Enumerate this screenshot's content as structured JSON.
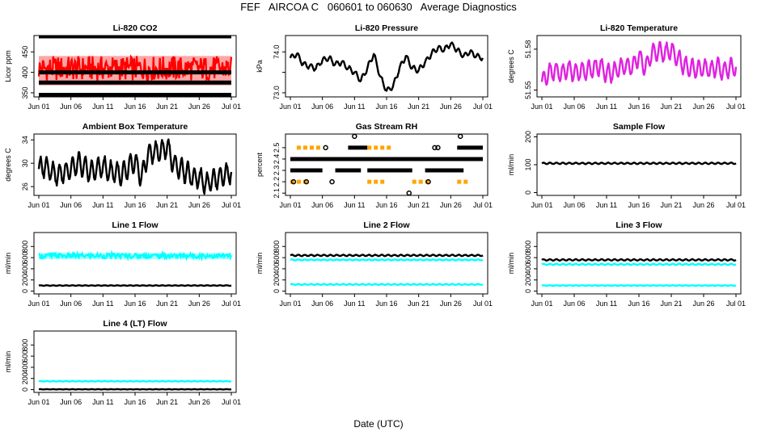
{
  "page": {
    "title": "FEF   AIRCOA C   060601 to 060630   Average Diagnostics",
    "x_axis_title": "Date (UTC)"
  },
  "colors": {
    "black": "#000000",
    "red": "#ff0000",
    "magenta": "#e020e0",
    "green": "#2e8b2e",
    "orange": "#ffa500",
    "cyan": "#00ffff"
  },
  "chart_data": [
    {
      "type": "scatter",
      "title": "Li-820 CO2",
      "ylabel": "Licor ppm",
      "ylim": [
        340,
        490
      ],
      "yticks": [
        350,
        400,
        450
      ],
      "xlim": [
        1,
        31
      ],
      "xticks": [
        "Jun 01",
        "Jun 06",
        "Jun 11",
        "Jun 16",
        "Jun 21",
        "Jun 26",
        "Jul 01"
      ],
      "grid": false,
      "series": [
        {
          "color": "black",
          "kind": "line",
          "values": [
            488
          ]
        },
        {
          "color": "red",
          "kind": "band",
          "low": [
            368
          ],
          "high": [
            440
          ]
        },
        {
          "color": "black",
          "kind": "line",
          "values": [
            400
          ]
        },
        {
          "color": "black",
          "kind": "line",
          "values": [
            375
          ]
        },
        {
          "color": "black",
          "kind": "line",
          "values": [
            345
          ]
        }
      ]
    },
    {
      "type": "line",
      "title": "Li-820 Pressure",
      "ylabel": "kPa",
      "ylim": [
        72.9,
        74.4
      ],
      "yticks": [
        73.0,
        73.5,
        74.0
      ],
      "yticklabels": [
        "73.0",
        "",
        "74.0"
      ],
      "xlim": [
        1,
        31
      ],
      "xticks": [
        "Jun 01",
        "Jun 06",
        "Jun 11",
        "Jun 16",
        "Jun 21",
        "Jun 26",
        "Jul 01"
      ],
      "grid": false,
      "series": [
        {
          "color": "black",
          "kind": "line",
          "x": [
            1,
            2,
            3,
            4,
            5,
            6,
            7,
            8,
            9,
            10,
            11,
            12,
            13,
            14,
            15,
            16,
            17,
            18,
            19,
            20,
            21,
            22,
            23,
            24,
            25,
            26,
            27,
            28,
            29,
            30,
            31
          ],
          "values": [
            73.85,
            73.95,
            73.7,
            73.65,
            73.6,
            73.8,
            73.85,
            73.7,
            73.75,
            73.6,
            73.5,
            73.3,
            73.6,
            73.95,
            73.4,
            73.05,
            73.15,
            73.6,
            73.9,
            73.6,
            73.55,
            73.75,
            73.95,
            74.1,
            74.05,
            74.2,
            74.05,
            73.9,
            74.0,
            73.9,
            73.85
          ],
          "amplitude": 0.08
        }
      ]
    },
    {
      "type": "line",
      "title": "Li-820 Temperature",
      "ylabel": "degrees C",
      "ylim": [
        51.545,
        51.59
      ],
      "yticks": [
        51.55,
        51.58
      ],
      "xlim": [
        1,
        31
      ],
      "xticks": [
        "Jun 01",
        "Jun 06",
        "Jun 11",
        "Jun 16",
        "Jun 21",
        "Jun 26",
        "Jul 01"
      ],
      "grid": false,
      "series": [
        {
          "color": "magenta",
          "kind": "line",
          "x": [
            1,
            2,
            3,
            4,
            5,
            6,
            7,
            8,
            9,
            10,
            11,
            12,
            13,
            14,
            15,
            16,
            17,
            18,
            19,
            20,
            21,
            22,
            23,
            24,
            25,
            26,
            27,
            28,
            29,
            30,
            31
          ],
          "values": [
            51.556,
            51.562,
            51.565,
            51.562,
            51.566,
            51.563,
            51.564,
            51.564,
            51.566,
            51.568,
            51.562,
            51.563,
            51.566,
            51.568,
            51.567,
            51.575,
            51.566,
            51.577,
            51.578,
            51.577,
            51.58,
            51.573,
            51.568,
            51.566,
            51.565,
            51.566,
            51.565,
            51.567,
            51.564,
            51.566,
            51.567
          ],
          "amplitude": 0.008
        }
      ]
    },
    {
      "type": "line",
      "title": "Ambient Box Temperature",
      "ylabel": "degrees C",
      "ylim": [
        24.5,
        35
      ],
      "yticks": [
        26,
        30,
        34
      ],
      "xlim": [
        1,
        31
      ],
      "xticks": [
        "Jun 01",
        "Jun 06",
        "Jun 11",
        "Jun 16",
        "Jun 21",
        "Jun 26",
        "Jul 01"
      ],
      "grid": false,
      "series": [
        {
          "color": "black",
          "kind": "line",
          "x": [
            1,
            2,
            3,
            4,
            5,
            6,
            7,
            8,
            9,
            10,
            11,
            12,
            13,
            14,
            15,
            16,
            17,
            18,
            19,
            20,
            21,
            22,
            23,
            24,
            25,
            26,
            27,
            28,
            29,
            30,
            31
          ],
          "values": [
            29.0,
            29.5,
            28.5,
            28.0,
            28.5,
            29.0,
            30.0,
            29.5,
            28.5,
            29.0,
            29.5,
            28.5,
            28.5,
            28.0,
            29.5,
            30.5,
            27.5,
            31.5,
            32.0,
            32.0,
            33.0,
            30.0,
            29.0,
            28.5,
            27.5,
            27.5,
            26.5,
            27.0,
            27.5,
            28.0,
            28.5
          ],
          "amplitude": 2.2
        }
      ]
    },
    {
      "type": "scatter",
      "title": "Gas Stream RH",
      "ylabel": "percent",
      "ylim": [
        2.08,
        2.62
      ],
      "yticks": [
        2.1,
        2.2,
        2.3,
        2.4,
        2.5
      ],
      "xlim": [
        1,
        31
      ],
      "xticks": [
        "Jun 01",
        "Jun 06",
        "Jun 11",
        "Jun 16",
        "Jun 21",
        "Jun 26",
        "Jul 01"
      ],
      "grid": false,
      "series": [
        {
          "color": "black",
          "kind": "segments",
          "level": 2.4,
          "spans": [
            [
              1,
              31
            ]
          ]
        },
        {
          "color": "black",
          "kind": "segments",
          "level": 2.3,
          "spans": [
            [
              1,
              6
            ],
            [
              8,
              12
            ],
            [
              13,
              20
            ],
            [
              22,
              28
            ]
          ]
        },
        {
          "color": "black",
          "kind": "segments",
          "level": 2.5,
          "spans": [
            [
              10,
              13
            ],
            [
              27,
              31
            ]
          ]
        },
        {
          "color": "orange",
          "kind": "segments",
          "level": 2.5,
          "spans": [
            [
              2,
              6
            ],
            [
              13,
              17
            ]
          ]
        },
        {
          "color": "orange",
          "kind": "segments",
          "level": 2.2,
          "spans": [
            [
              1,
              4
            ],
            [
              13,
              16
            ],
            [
              20,
              23
            ],
            [
              27,
              29
            ]
          ]
        },
        {
          "color": "black",
          "kind": "points",
          "x": [
            1.5,
            3.5,
            6.5,
            7.5,
            22.5,
            23.5,
            19.5,
            11.0,
            27.5,
            24.0
          ],
          "values": [
            2.2,
            2.2,
            2.5,
            2.2,
            2.2,
            2.5,
            2.1,
            2.6,
            2.6,
            2.5
          ]
        }
      ]
    },
    {
      "type": "line",
      "title": "Sample Flow",
      "ylabel": "ml/min",
      "ylim": [
        -10,
        210
      ],
      "yticks": [
        0,
        100,
        200
      ],
      "xlim": [
        1,
        31
      ],
      "xticks": [
        "Jun 01",
        "Jun 06",
        "Jun 11",
        "Jun 16",
        "Jun 21",
        "Jun 26",
        "Jul 01"
      ],
      "grid": false,
      "series": [
        {
          "color": "black",
          "kind": "line",
          "values": [
            105
          ],
          "amplitude": 3
        }
      ]
    },
    {
      "type": "line",
      "title": "Line 1 Flow",
      "ylabel": "ml/min",
      "ylim": [
        -50,
        1050
      ],
      "yticks": [
        0,
        200,
        400,
        600,
        800
      ],
      "xlim": [
        1,
        31
      ],
      "xticks": [
        "Jun 01",
        "Jun 06",
        "Jun 11",
        "Jun 16",
        "Jun 21",
        "Jun 26",
        "Jul 01"
      ],
      "grid": false,
      "series": [
        {
          "color": "cyan",
          "kind": "band",
          "low": [
            570
          ],
          "high": [
            680
          ]
        },
        {
          "color": "black",
          "kind": "line",
          "values": [
            100
          ],
          "amplitude": 6
        }
      ]
    },
    {
      "type": "line",
      "title": "Line 2 Flow",
      "ylabel": "ml/min",
      "ylim": [
        -50,
        1050
      ],
      "yticks": [
        0,
        200,
        400,
        600,
        800
      ],
      "xlim": [
        1,
        31
      ],
      "xticks": [
        "Jun 01",
        "Jun 06",
        "Jun 11",
        "Jun 16",
        "Jun 21",
        "Jun 26",
        "Jul 01"
      ],
      "grid": false,
      "series": [
        {
          "color": "black",
          "kind": "line",
          "values": [
            640
          ],
          "amplitude": 15
        },
        {
          "color": "cyan",
          "kind": "line",
          "values": [
            560
          ],
          "amplitude": 10
        },
        {
          "color": "cyan",
          "kind": "line",
          "values": [
            120
          ],
          "amplitude": 10
        }
      ]
    },
    {
      "type": "line",
      "title": "Line 3 Flow",
      "ylabel": "ml/min",
      "ylim": [
        -50,
        1050
      ],
      "yticks": [
        0,
        200,
        400,
        600,
        800
      ],
      "xlim": [
        1,
        31
      ],
      "xticks": [
        "Jun 01",
        "Jun 06",
        "Jun 11",
        "Jun 16",
        "Jun 21",
        "Jun 26",
        "Jul 01"
      ],
      "grid": false,
      "series": [
        {
          "color": "black",
          "kind": "line",
          "values": [
            560
          ],
          "amplitude": 15
        },
        {
          "color": "cyan",
          "kind": "line",
          "values": [
            480
          ],
          "amplitude": 12
        },
        {
          "color": "cyan",
          "kind": "line",
          "values": [
            100
          ],
          "amplitude": 6
        }
      ]
    },
    {
      "type": "line",
      "title": "Line 4 (LT) Flow",
      "ylabel": "ml/min",
      "ylim": [
        -50,
        1050
      ],
      "yticks": [
        0,
        200,
        400,
        600,
        800
      ],
      "xlim": [
        1,
        31
      ],
      "xticks": [
        "Jun 01",
        "Jun 06",
        "Jun 11",
        "Jun 16",
        "Jun 21",
        "Jun 26",
        "Jul 01"
      ],
      "grid": false,
      "series": [
        {
          "color": "cyan",
          "kind": "line",
          "values": [
            150
          ],
          "amplitude": 6
        },
        {
          "color": "black",
          "kind": "line",
          "values": [
            5
          ],
          "amplitude": 3
        }
      ]
    }
  ]
}
